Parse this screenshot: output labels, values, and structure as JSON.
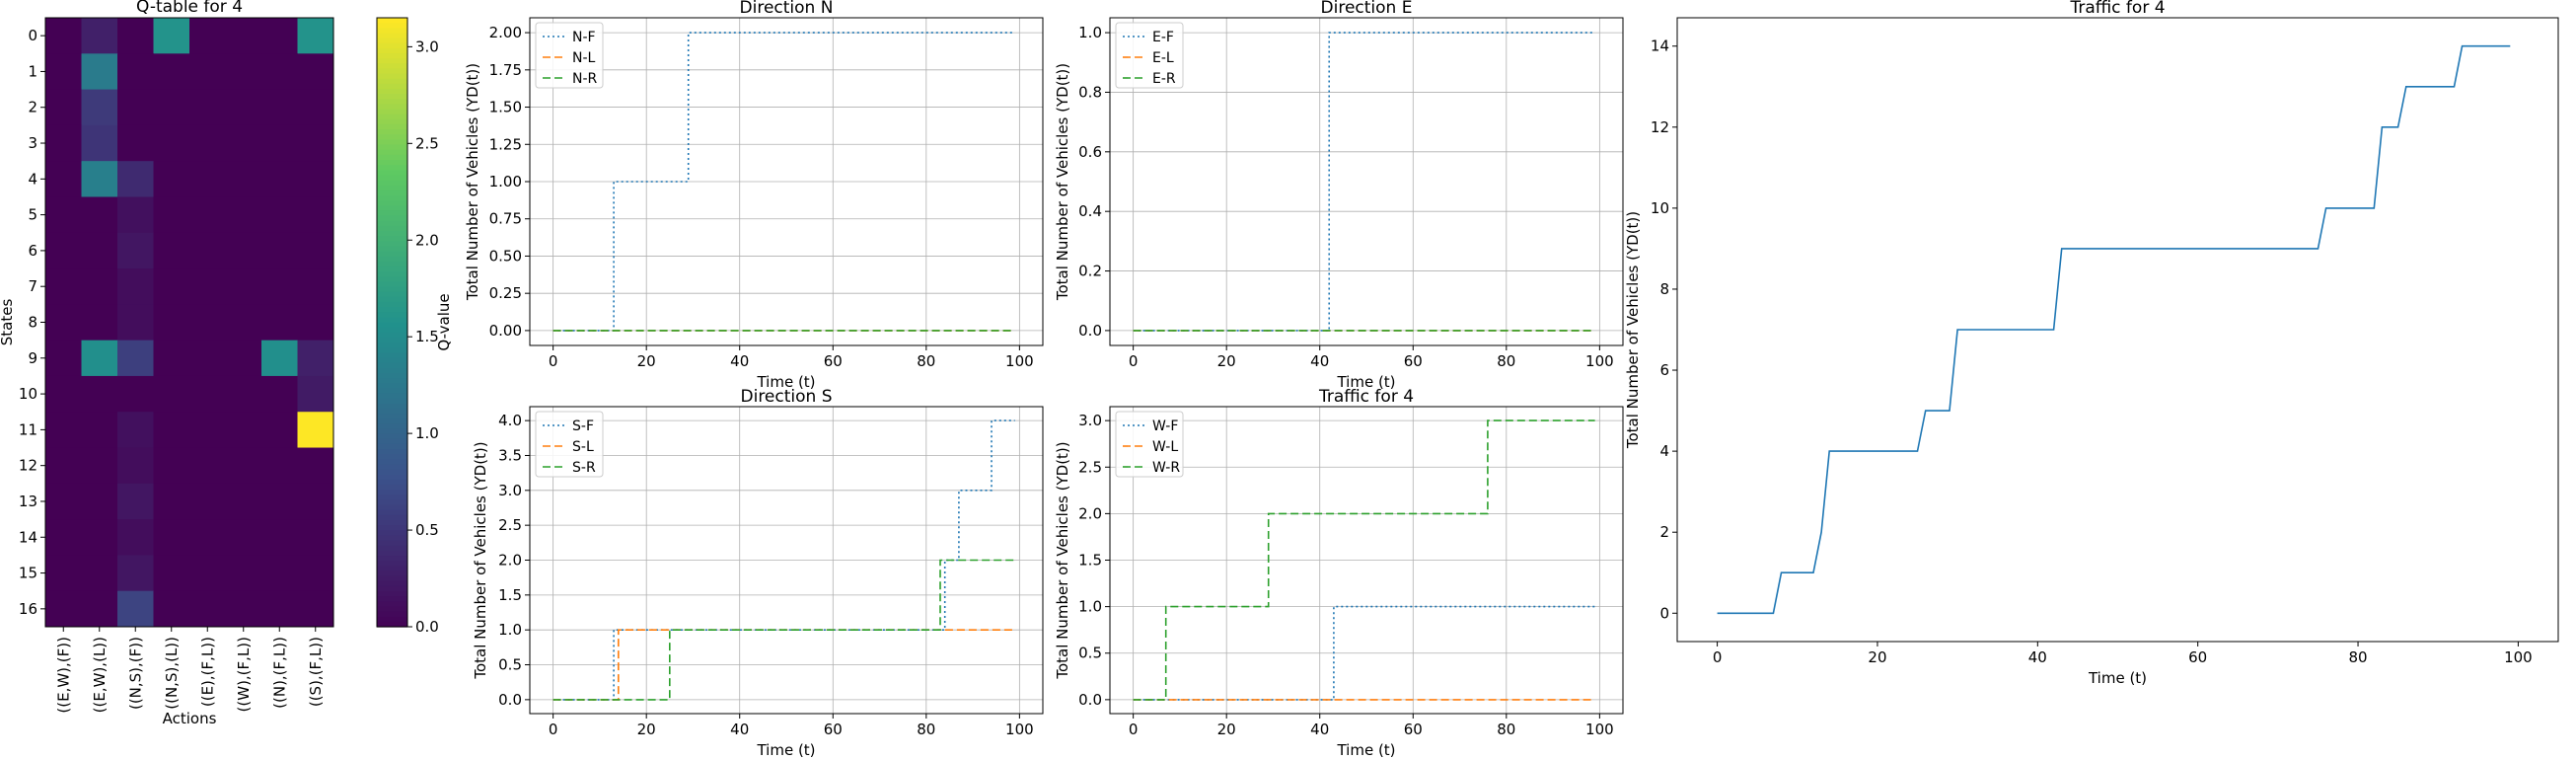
{
  "chart_data": [
    {
      "type": "heatmap",
      "title": "Q-table for 4",
      "xlabel": "Actions",
      "ylabel": "States",
      "x_categories": [
        "((E,W),(F))",
        "((E,W),(L))",
        "((N,S),(F))",
        "((N,S),(L))",
        "((E),(F,L))",
        "((W),(F,L))",
        "((N),(F,L))",
        "((S),(F,L))"
      ],
      "y_categories": [
        "0",
        "1",
        "2",
        "3",
        "4",
        "5",
        "6",
        "7",
        "8",
        "9",
        "10",
        "11",
        "12",
        "13",
        "14",
        "15",
        "16"
      ],
      "values": [
        [
          0,
          0.3,
          0,
          1.6,
          0,
          0,
          0,
          1.6
        ],
        [
          0,
          1.3,
          0,
          0,
          0,
          0,
          0,
          0
        ],
        [
          0,
          0.55,
          0,
          0,
          0,
          0,
          0,
          0
        ],
        [
          0,
          0.5,
          0,
          0,
          0,
          0,
          0,
          0
        ],
        [
          0,
          1.35,
          0.4,
          0,
          0,
          0,
          0,
          0
        ],
        [
          0,
          0,
          0.15,
          0,
          0,
          0,
          0,
          0
        ],
        [
          0,
          0,
          0.2,
          0,
          0,
          0,
          0,
          0
        ],
        [
          0,
          0,
          0.12,
          0,
          0,
          0,
          0,
          0
        ],
        [
          0,
          0,
          0.12,
          0,
          0,
          0,
          0,
          0
        ],
        [
          0,
          1.55,
          0.6,
          0,
          0,
          0,
          1.55,
          0.3
        ],
        [
          0,
          0,
          0,
          0,
          0,
          0,
          0,
          0.25
        ],
        [
          0,
          0,
          0.15,
          0,
          0,
          0,
          0,
          3.15
        ],
        [
          0,
          0,
          0.12,
          0,
          0,
          0,
          0,
          0
        ],
        [
          0,
          0,
          0.2,
          0,
          0,
          0,
          0,
          0
        ],
        [
          0,
          0,
          0.12,
          0,
          0,
          0,
          0,
          0
        ],
        [
          0,
          0,
          0.2,
          0,
          0,
          0,
          0,
          0
        ],
        [
          0,
          0,
          0.65,
          0,
          0,
          0,
          0,
          0
        ]
      ],
      "colorbar": {
        "label": "Q-value",
        "range": [
          0,
          3.15
        ],
        "ticks": [
          "0.0",
          "0.5",
          "1.0",
          "1.5",
          "2.0",
          "2.5",
          "3.0"
        ]
      },
      "colormap": [
        "#440154",
        "#3b528b",
        "#21918c",
        "#5ec962",
        "#fde725"
      ]
    },
    {
      "type": "line",
      "title": "Direction N",
      "xlabel": "Time (t)",
      "ylabel": "Total Number of Vehicles (YD(t))",
      "xlim": [
        -5,
        105
      ],
      "ylim": [
        -0.1,
        2.1
      ],
      "xticks": [
        0,
        20,
        40,
        60,
        80,
        100
      ],
      "yticks": [
        "0.00",
        "0.25",
        "0.50",
        "0.75",
        "1.00",
        "1.25",
        "1.50",
        "1.75",
        "2.00"
      ],
      "grid": true,
      "legend": "top-left",
      "series": [
        {
          "name": "N-F",
          "color": "#1f77b4",
          "dash": "dotted",
          "points": [
            [
              0,
              0
            ],
            [
              13,
              0
            ],
            [
              13,
              1
            ],
            [
              29,
              1
            ],
            [
              29,
              2
            ],
            [
              99,
              2
            ]
          ]
        },
        {
          "name": "N-L",
          "color": "#ff7f0e",
          "dash": "dashed",
          "points": [
            [
              0,
              0
            ],
            [
              99,
              0
            ]
          ]
        },
        {
          "name": "N-R",
          "color": "#2ca02c",
          "dash": "dashed",
          "points": [
            [
              0,
              0
            ],
            [
              99,
              0
            ]
          ]
        }
      ]
    },
    {
      "type": "line",
      "title": "Direction E",
      "xlabel": "Time (t)",
      "ylabel": "Total Number of Vehicles (YD(t))",
      "xlim": [
        -5,
        105
      ],
      "ylim": [
        -0.05,
        1.05
      ],
      "xticks": [
        0,
        20,
        40,
        60,
        80,
        100
      ],
      "yticks": [
        "0.0",
        "0.2",
        "0.4",
        "0.6",
        "0.8",
        "1.0"
      ],
      "grid": true,
      "legend": "top-left",
      "series": [
        {
          "name": "E-F",
          "color": "#1f77b4",
          "dash": "dotted",
          "points": [
            [
              0,
              0
            ],
            [
              42,
              0
            ],
            [
              42,
              1
            ],
            [
              99,
              1
            ]
          ]
        },
        {
          "name": "E-L",
          "color": "#ff7f0e",
          "dash": "dashed",
          "points": [
            [
              0,
              0
            ],
            [
              99,
              0
            ]
          ]
        },
        {
          "name": "E-R",
          "color": "#2ca02c",
          "dash": "dashed",
          "points": [
            [
              0,
              0
            ],
            [
              99,
              0
            ]
          ]
        }
      ]
    },
    {
      "type": "line",
      "title": "Direction S",
      "xlabel": "Time (t)",
      "ylabel": "Total Number of Vehicles (YD(t))",
      "xlim": [
        -5,
        105
      ],
      "ylim": [
        -0.2,
        4.2
      ],
      "xticks": [
        0,
        20,
        40,
        60,
        80,
        100
      ],
      "yticks": [
        "0.0",
        "0.5",
        "1.0",
        "1.5",
        "2.0",
        "2.5",
        "3.0",
        "3.5",
        "4.0"
      ],
      "grid": true,
      "legend": "top-left",
      "series": [
        {
          "name": "S-F",
          "color": "#1f77b4",
          "dash": "dotted",
          "points": [
            [
              0,
              0
            ],
            [
              13,
              0
            ],
            [
              13,
              1
            ],
            [
              84,
              1
            ],
            [
              84,
              2
            ],
            [
              87,
              2
            ],
            [
              87,
              3
            ],
            [
              94,
              3
            ],
            [
              94,
              4
            ],
            [
              99,
              4
            ]
          ]
        },
        {
          "name": "S-L",
          "color": "#ff7f0e",
          "dash": "dashed",
          "points": [
            [
              0,
              0
            ],
            [
              14,
              0
            ],
            [
              14,
              1
            ],
            [
              99,
              1
            ]
          ]
        },
        {
          "name": "S-R",
          "color": "#2ca02c",
          "dash": "dashed",
          "points": [
            [
              0,
              0
            ],
            [
              25,
              0
            ],
            [
              25,
              1
            ],
            [
              83,
              1
            ],
            [
              83,
              2
            ],
            [
              99,
              2
            ]
          ]
        }
      ]
    },
    {
      "type": "line",
      "title": "Traffic for 4",
      "xlabel": "Time (t)",
      "ylabel": "Total Number of Vehicles (YD(t))",
      "xlim": [
        -5,
        105
      ],
      "ylim": [
        -0.15,
        3.15
      ],
      "xticks": [
        0,
        20,
        40,
        60,
        80,
        100
      ],
      "yticks": [
        "0.0",
        "0.5",
        "1.0",
        "1.5",
        "2.0",
        "2.5",
        "3.0"
      ],
      "grid": true,
      "legend": "top-left",
      "series": [
        {
          "name": "W-F",
          "color": "#1f77b4",
          "dash": "dotted",
          "points": [
            [
              0,
              0
            ],
            [
              43,
              0
            ],
            [
              43,
              1
            ],
            [
              99,
              1
            ]
          ]
        },
        {
          "name": "W-L",
          "color": "#ff7f0e",
          "dash": "dashed",
          "points": [
            [
              0,
              0
            ],
            [
              99,
              0
            ]
          ]
        },
        {
          "name": "W-R",
          "color": "#2ca02c",
          "dash": "dashed",
          "points": [
            [
              0,
              0
            ],
            [
              7,
              0
            ],
            [
              7,
              1
            ],
            [
              29,
              1
            ],
            [
              29,
              2
            ],
            [
              76,
              2
            ],
            [
              76,
              3
            ],
            [
              99,
              3
            ]
          ]
        }
      ]
    },
    {
      "type": "line",
      "title": "Traffic for 4",
      "xlabel": "Time (t)",
      "ylabel": "Total Number of Vehicles (YD(t))",
      "xlim": [
        -5,
        105
      ],
      "ylim": [
        -0.7,
        14.7
      ],
      "xticks": [
        0,
        20,
        40,
        60,
        80,
        100
      ],
      "yticks": [
        "0",
        "2",
        "4",
        "6",
        "8",
        "10",
        "12",
        "14"
      ],
      "grid": false,
      "legend": "none",
      "series": [
        {
          "color": "#1f77b4",
          "dash": "solid",
          "points": [
            [
              0,
              0
            ],
            [
              7,
              0
            ],
            [
              8,
              1
            ],
            [
              12,
              1
            ],
            [
              13,
              2
            ],
            [
              14,
              4
            ],
            [
              25,
              4
            ],
            [
              26,
              5
            ],
            [
              29,
              5
            ],
            [
              30,
              7
            ],
            [
              42,
              7
            ],
            [
              43,
              9
            ],
            [
              75,
              9
            ],
            [
              76,
              10
            ],
            [
              82,
              10
            ],
            [
              83,
              12
            ],
            [
              85,
              12
            ],
            [
              86,
              13
            ],
            [
              92,
              13
            ],
            [
              93,
              14
            ],
            [
              99,
              14
            ]
          ]
        }
      ]
    }
  ]
}
